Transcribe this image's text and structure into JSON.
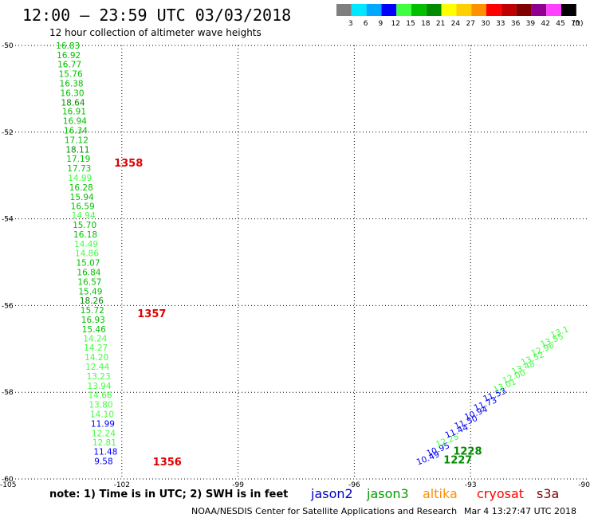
{
  "header": {
    "title": "12:00 – 23:59 UTC 03/03/2018",
    "subtitle": "12 hour collection of altimeter wave heights"
  },
  "colorbar": {
    "unit": "(ft)",
    "bins": [
      {
        "label": "3",
        "color": "#7f7f7f"
      },
      {
        "label": "6",
        "color": "#00e8ff"
      },
      {
        "label": "9",
        "color": "#00a8ff"
      },
      {
        "label": "12",
        "color": "#0000ff"
      },
      {
        "label": "15",
        "color": "#40ff40"
      },
      {
        "label": "18",
        "color": "#00c000"
      },
      {
        "label": "21",
        "color": "#008c00"
      },
      {
        "label": "24",
        "color": "#ffff00"
      },
      {
        "label": "27",
        "color": "#ffd000"
      },
      {
        "label": "30",
        "color": "#ff9000"
      },
      {
        "label": "33",
        "color": "#ff0000"
      },
      {
        "label": "36",
        "color": "#c00000"
      },
      {
        "label": "39",
        "color": "#800000"
      },
      {
        "label": "42",
        "color": "#900090"
      },
      {
        "label": "45",
        "color": "#ff40ff"
      },
      {
        "label": "70",
        "color": "#000000"
      }
    ]
  },
  "footer": {
    "note": "note:  1) Time is in UTC;  2) SWH is in feet",
    "credit": "NOAA/NESDIS Center for Satellite Applications and Research",
    "timestamp": "Mar  4 13:27:47 UTC 2018"
  },
  "chart_data": {
    "type": "scatter",
    "xlim": [
      -105,
      -90
    ],
    "ylim": [
      -60,
      -50
    ],
    "x_ticks": [
      -105,
      -102,
      -99,
      -96,
      -93,
      -90
    ],
    "y_ticks": [
      -50,
      -52,
      -54,
      -56,
      -58,
      -60
    ],
    "grid": true,
    "legend": [
      {
        "name": "jason2",
        "color": "#0000cc"
      },
      {
        "name": "jason3",
        "color": "#00a000"
      },
      {
        "name": "altika",
        "color": "#ff9000"
      },
      {
        "name": "cryosat",
        "color": "#ff0000"
      },
      {
        "name": "s3a",
        "color": "#800000"
      }
    ],
    "series": [
      {
        "name": "jason3",
        "color_key": "value",
        "points": [
          {
            "x": -103.7,
            "y": -50.0,
            "v": "16.83"
          },
          {
            "x": -103.68,
            "y": -50.22,
            "v": "16.92"
          },
          {
            "x": -103.66,
            "y": -50.43,
            "v": "16.77"
          },
          {
            "x": -103.63,
            "y": -50.65,
            "v": "15.76"
          },
          {
            "x": -103.61,
            "y": -50.87,
            "v": "16.38"
          },
          {
            "x": -103.59,
            "y": -51.09,
            "v": "16.30"
          },
          {
            "x": -103.57,
            "y": -51.31,
            "v": "18.64"
          },
          {
            "x": -103.54,
            "y": -51.52,
            "v": "16.91"
          },
          {
            "x": -103.52,
            "y": -51.74,
            "v": "16.94"
          },
          {
            "x": -103.5,
            "y": -51.96,
            "v": "16.34"
          },
          {
            "x": -103.48,
            "y": -52.18,
            "v": "17.12"
          },
          {
            "x": -103.45,
            "y": -52.4,
            "v": "18.11"
          },
          {
            "x": -103.43,
            "y": -52.61,
            "v": "17.19"
          },
          {
            "x": -103.41,
            "y": -52.83,
            "v": "17.73"
          },
          {
            "x": -103.39,
            "y": -53.05,
            "v": "14.99"
          },
          {
            "x": -103.36,
            "y": -53.27,
            "v": "16.28"
          },
          {
            "x": -103.34,
            "y": -53.49,
            "v": "15.94"
          },
          {
            "x": -103.32,
            "y": -53.7,
            "v": "16.59"
          },
          {
            "x": -103.3,
            "y": -53.92,
            "v": "14.94"
          },
          {
            "x": -103.27,
            "y": -54.14,
            "v": "15.70"
          },
          {
            "x": -103.25,
            "y": -54.36,
            "v": "16.18"
          },
          {
            "x": -103.23,
            "y": -54.58,
            "v": "14.49"
          },
          {
            "x": -103.21,
            "y": -54.79,
            "v": "14.86"
          },
          {
            "x": -103.18,
            "y": -55.01,
            "v": "15.07"
          },
          {
            "x": -103.16,
            "y": -55.23,
            "v": "16.84"
          },
          {
            "x": -103.14,
            "y": -55.45,
            "v": "16.57"
          },
          {
            "x": -103.12,
            "y": -55.67,
            "v": "15.49"
          },
          {
            "x": -103.09,
            "y": -55.88,
            "v": "18.26"
          },
          {
            "x": -103.07,
            "y": -56.1,
            "v": "15.72"
          },
          {
            "x": -103.05,
            "y": -56.32,
            "v": "16.93"
          },
          {
            "x": -103.03,
            "y": -56.54,
            "v": "15.46"
          },
          {
            "x": -103.0,
            "y": -56.76,
            "v": "14.24"
          },
          {
            "x": -102.98,
            "y": -56.97,
            "v": "14.27"
          },
          {
            "x": -102.96,
            "y": -57.19,
            "v": "14.20"
          },
          {
            "x": -102.94,
            "y": -57.41,
            "v": "12.44"
          },
          {
            "x": -102.91,
            "y": -57.63,
            "v": "13.23"
          },
          {
            "x": -102.89,
            "y": -57.85,
            "v": "13.94"
          },
          {
            "x": -102.87,
            "y": -58.06,
            "v": "14.66"
          },
          {
            "x": -102.85,
            "y": -58.28,
            "v": "13.80"
          },
          {
            "x": -102.82,
            "y": -58.5,
            "v": "14.10"
          },
          {
            "x": -102.8,
            "y": -58.72,
            "v": "11.99"
          },
          {
            "x": -102.78,
            "y": -58.94,
            "v": "12.24"
          },
          {
            "x": -102.76,
            "y": -59.15,
            "v": "12.81"
          },
          {
            "x": -102.73,
            "y": -59.37,
            "v": "11.48"
          },
          {
            "x": -102.71,
            "y": -59.59,
            "v": "9.58"
          }
        ]
      },
      {
        "name": "jason2",
        "color_key": "value",
        "points": [
          {
            "x": -94.36,
            "y": -59.61,
            "v": "10.49"
          },
          {
            "x": -94.1,
            "y": -59.41,
            "v": "10.95"
          },
          {
            "x": -93.86,
            "y": -59.2,
            "v": "12.25"
          },
          {
            "x": -93.62,
            "y": -58.99,
            "v": "11.44"
          },
          {
            "x": -93.38,
            "y": -58.78,
            "v": "11.50"
          },
          {
            "x": -93.12,
            "y": -58.57,
            "v": "10.94"
          },
          {
            "x": -92.88,
            "y": -58.36,
            "v": "11.73"
          },
          {
            "x": -92.64,
            "y": -58.15,
            "v": "11.53"
          },
          {
            "x": -92.38,
            "y": -57.94,
            "v": "13.01"
          },
          {
            "x": -92.14,
            "y": -57.73,
            "v": "12.00"
          },
          {
            "x": -91.9,
            "y": -57.52,
            "v": "13.48"
          },
          {
            "x": -91.66,
            "y": -57.31,
            "v": "13.52"
          },
          {
            "x": -91.4,
            "y": -57.1,
            "v": "12.96"
          },
          {
            "x": -91.16,
            "y": -56.89,
            "v": "13.55"
          },
          {
            "x": -90.9,
            "y": -56.68,
            "v": "13.1"
          }
        ]
      }
    ],
    "annotations": [
      {
        "x": -102.2,
        "y": -52.7,
        "text": "1358",
        "color": "#e00000"
      },
      {
        "x": -101.6,
        "y": -56.18,
        "text": "1357",
        "color": "#e00000"
      },
      {
        "x": -101.2,
        "y": -59.6,
        "text": "1356",
        "color": "#e00000"
      },
      {
        "x": -93.45,
        "y": -59.35,
        "text": "1228",
        "color": "#008c00"
      },
      {
        "x": -93.7,
        "y": -59.55,
        "text": "1227",
        "color": "#008c00"
      }
    ]
  }
}
